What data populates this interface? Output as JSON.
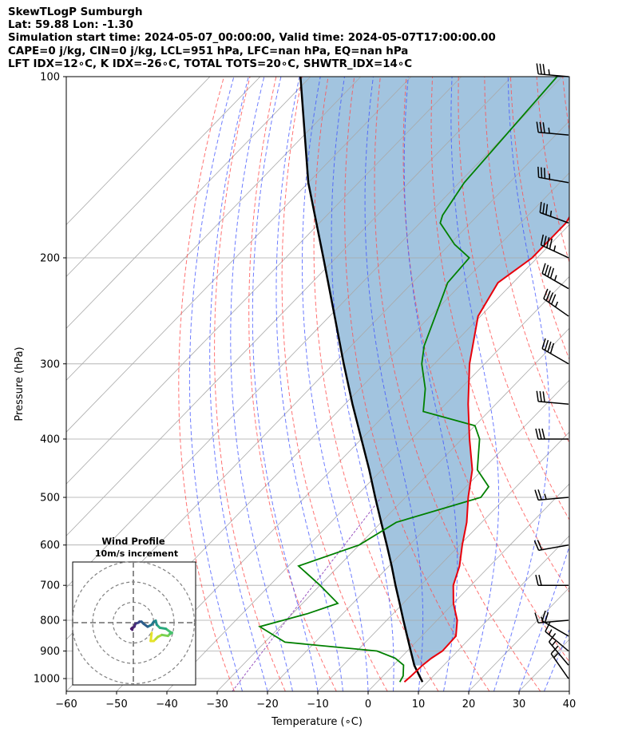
{
  "header": {
    "title_line": "SkewTLogP Sumburgh",
    "location_line": "Lat: 59.88   Lon: -1.30",
    "time_line": "Simulation start time: 2024-05-07_00:00:00, Valid time: 2024-05-07T17:00:00.00",
    "params_line": "CAPE=0 j/kg, CIN=0 j/kg, LCL=951 hPa, LFC=nan hPa, EQ=nan hPa",
    "indices_line": "LFT IDX=12∘C, K IDX=-26∘C, TOTAL TOTS=20∘C, SHWTR_IDX=14∘C"
  },
  "chart_data": {
    "type": "skewt",
    "xlabel": "Temperature (∘C)",
    "ylabel": "Pressure (hPa)",
    "xlim": [
      -60,
      40
    ],
    "ylim": [
      1050,
      100
    ],
    "x_ticks": [
      -60,
      -50,
      -40,
      -30,
      -20,
      -10,
      0,
      10,
      20,
      30,
      40
    ],
    "x_tick_labels": [
      "−60",
      "−50",
      "−40",
      "−30",
      "−20",
      "−10",
      "0",
      "10",
      "20",
      "30",
      "40"
    ],
    "y_ticks": [
      1000,
      900,
      800,
      700,
      600,
      500,
      400,
      300,
      200,
      100
    ],
    "y_tick_labels": [
      "1000",
      "900",
      "800",
      "700",
      "600",
      "500",
      "400",
      "300",
      "200",
      "100"
    ],
    "grid": true,
    "colors": {
      "temperature": "#e8000b",
      "dewpoint": "#008000",
      "parcel": "#000000",
      "cape_fill": "#a2c4df",
      "dry_adiabat": "#ff5050",
      "moist_adiabat": "#3c50ff",
      "mixing_ratio": "#9a55c0",
      "isotherm": "#a9a9a9",
      "barb": "#000000"
    },
    "temperature_profile": [
      {
        "p": 1013,
        "t": 5.4
      },
      {
        "p": 990,
        "t": 5.6
      },
      {
        "p": 950,
        "t": 5.8
      },
      {
        "p": 925,
        "t": 6.2
      },
      {
        "p": 900,
        "t": 7.0
      },
      {
        "p": 850,
        "t": 6.8
      },
      {
        "p": 800,
        "t": 4.0
      },
      {
        "p": 750,
        "t": 0.0
      },
      {
        "p": 700,
        "t": -3.5
      },
      {
        "p": 650,
        "t": -6.0
      },
      {
        "p": 600,
        "t": -9.5
      },
      {
        "p": 550,
        "t": -13.0
      },
      {
        "p": 500,
        "t": -17.5
      },
      {
        "p": 450,
        "t": -22.0
      },
      {
        "p": 400,
        "t": -28.5
      },
      {
        "p": 350,
        "t": -35.5
      },
      {
        "p": 300,
        "t": -43.0
      },
      {
        "p": 250,
        "t": -50.5
      },
      {
        "p": 220,
        "t": -53.0
      },
      {
        "p": 200,
        "t": -51.0
      },
      {
        "p": 175,
        "t": -51.0
      },
      {
        "p": 150,
        "t": -54.0
      },
      {
        "p": 125,
        "t": -56.0
      },
      {
        "p": 100,
        "t": -57.0
      }
    ],
    "dewpoint_profile": [
      {
        "p": 1013,
        "t": 4.5
      },
      {
        "p": 990,
        "t": 4.0
      },
      {
        "p": 950,
        "t": 2.0
      },
      {
        "p": 925,
        "t": -1.0
      },
      {
        "p": 900,
        "t": -6.0
      },
      {
        "p": 870,
        "t": -26.0
      },
      {
        "p": 820,
        "t": -34.0
      },
      {
        "p": 780,
        "t": -27.0
      },
      {
        "p": 750,
        "t": -23.0
      },
      {
        "p": 700,
        "t": -30.0
      },
      {
        "p": 650,
        "t": -38.0
      },
      {
        "p": 600,
        "t": -30.0
      },
      {
        "p": 550,
        "t": -27.0
      },
      {
        "p": 500,
        "t": -15.0
      },
      {
        "p": 480,
        "t": -15.5
      },
      {
        "p": 450,
        "t": -21.0
      },
      {
        "p": 400,
        "t": -26.5
      },
      {
        "p": 380,
        "t": -30.0
      },
      {
        "p": 360,
        "t": -43.0
      },
      {
        "p": 330,
        "t": -47.0
      },
      {
        "p": 300,
        "t": -52.5
      },
      {
        "p": 280,
        "t": -55.5
      },
      {
        "p": 250,
        "t": -59.0
      },
      {
        "p": 220,
        "t": -63.0
      },
      {
        "p": 200,
        "t": -63.5
      },
      {
        "p": 190,
        "t": -69.0
      },
      {
        "p": 175,
        "t": -76.0
      },
      {
        "p": 170,
        "t": -77.0
      },
      {
        "p": 150,
        "t": -79.0
      },
      {
        "p": 100,
        "t": -81.0
      }
    ],
    "parcel_profile": [
      {
        "p": 1013,
        "t": 9.0
      },
      {
        "p": 951,
        "t": 4.2
      },
      {
        "p": 900,
        "t": 0.7
      },
      {
        "p": 850,
        "t": -2.9
      },
      {
        "p": 800,
        "t": -6.7
      },
      {
        "p": 750,
        "t": -10.7
      },
      {
        "p": 700,
        "t": -15.0
      },
      {
        "p": 650,
        "t": -19.5
      },
      {
        "p": 600,
        "t": -24.5
      },
      {
        "p": 550,
        "t": -30.0
      },
      {
        "p": 500,
        "t": -36.0
      },
      {
        "p": 450,
        "t": -42.5
      },
      {
        "p": 400,
        "t": -50.0
      },
      {
        "p": 350,
        "t": -58.5
      },
      {
        "p": 300,
        "t": -68.0
      },
      {
        "p": 250,
        "t": -79.0
      },
      {
        "p": 200,
        "t": -92.5
      },
      {
        "p": 150,
        "t": -110.0
      },
      {
        "p": 100,
        "t": -132.0
      }
    ],
    "wind_barbs": [
      {
        "p": 100,
        "speed_kt": 35,
        "dir_deg": 275
      },
      {
        "p": 125,
        "speed_kt": 35,
        "dir_deg": 275
      },
      {
        "p": 150,
        "speed_kt": 35,
        "dir_deg": 280
      },
      {
        "p": 175,
        "speed_kt": 35,
        "dir_deg": 290
      },
      {
        "p": 200,
        "speed_kt": 45,
        "dir_deg": 295
      },
      {
        "p": 225,
        "speed_kt": 45,
        "dir_deg": 300
      },
      {
        "p": 250,
        "speed_kt": 45,
        "dir_deg": 305
      },
      {
        "p": 300,
        "speed_kt": 40,
        "dir_deg": 300
      },
      {
        "p": 350,
        "speed_kt": 30,
        "dir_deg": 275
      },
      {
        "p": 400,
        "speed_kt": 30,
        "dir_deg": 270
      },
      {
        "p": 500,
        "speed_kt": 25,
        "dir_deg": 265
      },
      {
        "p": 600,
        "speed_kt": 20,
        "dir_deg": 260
      },
      {
        "p": 700,
        "speed_kt": 20,
        "dir_deg": 270
      },
      {
        "p": 800,
        "speed_kt": 15,
        "dir_deg": 265
      },
      {
        "p": 850,
        "speed_kt": 20,
        "dir_deg": 300
      },
      {
        "p": 900,
        "speed_kt": 15,
        "dir_deg": 310
      },
      {
        "p": 950,
        "speed_kt": 15,
        "dir_deg": 320
      },
      {
        "p": 1000,
        "speed_kt": 15,
        "dir_deg": 325
      }
    ],
    "hodograph": {
      "title": "Wind Profile",
      "subtitle": "10m/s increment",
      "ring_increment_ms": 10,
      "ring_count": 3,
      "points": [
        {
          "u": 9.0,
          "v": -5.0
        },
        {
          "u": 8.5,
          "v": -9.0
        },
        {
          "u": 10.0,
          "v": -9.0
        },
        {
          "u": 11.0,
          "v": -8.0
        },
        {
          "u": 12.0,
          "v": -7.0
        },
        {
          "u": 14.0,
          "v": -6.0
        },
        {
          "u": 17.0,
          "v": -6.5
        },
        {
          "u": 18.0,
          "v": -5.5
        },
        {
          "u": 19.0,
          "v": -5.0
        },
        {
          "u": 18.0,
          "v": -4.5
        },
        {
          "u": 16.0,
          "v": -3.0
        },
        {
          "u": 13.0,
          "v": -2.5
        },
        {
          "u": 11.5,
          "v": -1.0
        },
        {
          "u": 11.0,
          "v": 1.0
        },
        {
          "u": 10.0,
          "v": 0.5
        },
        {
          "u": 9.0,
          "v": -1.0
        },
        {
          "u": 7.0,
          "v": -2.0
        },
        {
          "u": 5.0,
          "v": -0.5
        },
        {
          "u": 4.0,
          "v": 0.5
        },
        {
          "u": 3.0,
          "v": 0.5
        },
        {
          "u": 2.5,
          "v": 0.0
        },
        {
          "u": 1.0,
          "v": -0.5
        },
        {
          "u": 0.5,
          "v": -2.0
        },
        {
          "u": -0.5,
          "v": -2.5
        },
        {
          "u": -1.0,
          "v": -3.0
        },
        {
          "u": -0.5,
          "v": -3.5
        }
      ]
    }
  }
}
